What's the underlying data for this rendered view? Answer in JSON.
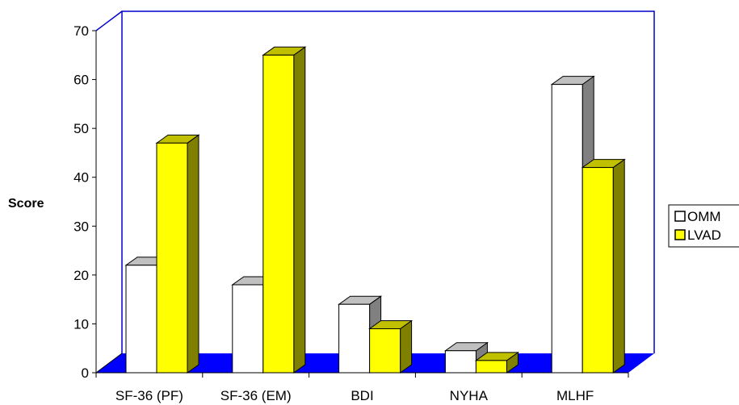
{
  "chart_data": {
    "type": "bar",
    "title": "",
    "xlabel": "",
    "ylabel": "Score",
    "ylim": [
      0,
      70
    ],
    "yticks": [
      0,
      10,
      20,
      30,
      40,
      50,
      60,
      70
    ],
    "categories": [
      "SF-36 (PF)",
      "SF-36 (EM)",
      "BDI",
      "NYHA",
      "MLHF"
    ],
    "series": [
      {
        "name": "OMM",
        "values": [
          22,
          18,
          14,
          4.5,
          59
        ]
      },
      {
        "name": "LVAD",
        "values": [
          47,
          65,
          9,
          2.5,
          42
        ]
      }
    ],
    "legend": "right",
    "grid": false,
    "three_d": true,
    "colors": {
      "OMM_front": "#ffffff",
      "OMM_side": "#808080",
      "OMM_top": "#c0c0c0",
      "LVAD_front": "#ffff00",
      "LVAD_side": "#808000",
      "LVAD_top": "#c0c000",
      "floor": "#0000ff",
      "wall_border": "#0000cc"
    }
  }
}
